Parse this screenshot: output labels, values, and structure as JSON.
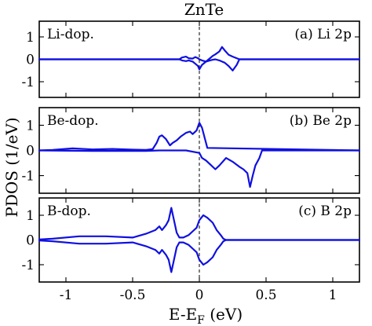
{
  "chart_data": [
    {
      "type": "line",
      "title": "ZnTe",
      "dopant_label": "Li-dop.",
      "panel_label": "(a) Li 2p",
      "xlim": [
        -1.2,
        1.2
      ],
      "ylim": [
        -1.7,
        1.7
      ],
      "yticks": [
        1,
        0,
        -1
      ],
      "ytick_labels": [
        "1",
        "0",
        "-1"
      ],
      "color": "#1010e0",
      "fermi_line_x": 0,
      "series": [
        {
          "x": [
            -1.2,
            -0.15,
            -0.13,
            -0.1,
            -0.08,
            -0.05,
            -0.03,
            -0.01,
            0.0,
            0.02,
            0.05,
            0.08,
            0.1,
            0.12,
            0.15,
            0.17,
            0.19,
            0.22,
            0.25,
            0.28,
            0.3,
            1.2
          ],
          "y": [
            0,
            0,
            0.08,
            0.12,
            0.05,
            0.03,
            0.1,
            0.05,
            0.0,
            -0.05,
            -0.1,
            0.05,
            0.15,
            0.22,
            0.35,
            0.55,
            0.4,
            0.2,
            0.12,
            0.05,
            0.0,
            0
          ]
        },
        {
          "x": [
            -1.2,
            -0.15,
            -0.13,
            -0.1,
            -0.08,
            -0.05,
            -0.03,
            -0.01,
            0.0,
            0.02,
            0.05,
            0.08,
            0.1,
            0.12,
            0.15,
            0.17,
            0.19,
            0.22,
            0.25,
            0.28,
            0.3,
            1.2
          ],
          "y": [
            0,
            0,
            -0.05,
            -0.08,
            -0.05,
            -0.1,
            -0.2,
            -0.3,
            -0.45,
            -0.25,
            -0.1,
            -0.05,
            -0.02,
            0.0,
            -0.05,
            -0.1,
            -0.15,
            -0.3,
            -0.5,
            -0.25,
            0.0,
            0
          ]
        }
      ]
    },
    {
      "type": "line",
      "dopant_label": "Be-dop.",
      "panel_label": "(b) Be 2p",
      "xlim": [
        -1.2,
        1.2
      ],
      "ylim": [
        -1.7,
        1.7
      ],
      "yticks": [
        1,
        0,
        -1
      ],
      "ytick_labels": [
        "1",
        "0",
        "-1"
      ],
      "color": "#1010e0",
      "fermi_line_x": 0,
      "series": [
        {
          "x": [
            -1.2,
            -1.1,
            -0.95,
            -0.8,
            -0.65,
            -0.5,
            -0.4,
            -0.35,
            -0.32,
            -0.3,
            -0.28,
            -0.25,
            -0.22,
            -0.2,
            -0.17,
            -0.14,
            -0.1,
            -0.07,
            -0.05,
            -0.02,
            0.0,
            0.02,
            0.04,
            0.06,
            1.2
          ],
          "y": [
            0,
            0.02,
            0.08,
            0.04,
            0.06,
            0.03,
            0.02,
            0.05,
            0.3,
            0.55,
            0.6,
            0.45,
            0.2,
            0.3,
            0.4,
            0.55,
            0.7,
            0.75,
            0.65,
            0.8,
            1.1,
            0.9,
            0.5,
            0.1,
            0
          ]
        },
        {
          "x": [
            -1.2,
            -0.8,
            -0.4,
            -0.3,
            -0.1,
            0.0,
            0.02,
            0.05,
            0.08,
            0.12,
            0.15,
            0.2,
            0.25,
            0.3,
            0.33,
            0.36,
            0.38,
            0.4,
            0.42,
            0.45,
            0.47,
            1.2
          ],
          "y": [
            0,
            -0.02,
            -0.02,
            0.0,
            0.0,
            -0.1,
            -0.3,
            -0.4,
            -0.55,
            -0.75,
            -0.6,
            -0.3,
            -0.45,
            -0.65,
            -0.75,
            -0.9,
            -1.45,
            -1.0,
            -0.6,
            -0.3,
            0.0,
            0
          ]
        }
      ]
    },
    {
      "type": "line",
      "dopant_label": "B-dop.",
      "panel_label": "(c) B 2p",
      "xlim": [
        -1.2,
        1.2
      ],
      "ylim": [
        -1.7,
        1.7
      ],
      "yticks": [
        1,
        0,
        -1
      ],
      "ytick_labels": [
        "1",
        "0",
        "-1"
      ],
      "xticks": [
        -1,
        -0.5,
        0,
        0.5,
        1
      ],
      "xtick_labels": [
        "-1",
        "-0.5",
        "0",
        "0.5",
        "1"
      ],
      "xlabel": "E-E",
      "xlabel_subscript": "F",
      "xlabel_suffix": " (eV)",
      "color": "#1010e0",
      "fermi_line_x": 0,
      "series": [
        {
          "x": [
            -1.2,
            -1.1,
            -0.9,
            -0.7,
            -0.5,
            -0.4,
            -0.33,
            -0.3,
            -0.28,
            -0.25,
            -0.23,
            -0.21,
            -0.19,
            -0.17,
            -0.15,
            -0.12,
            -0.08,
            -0.05,
            -0.02,
            0.0,
            0.03,
            0.06,
            0.1,
            0.13,
            0.16,
            0.18,
            0.2,
            1.2
          ],
          "y": [
            0.02,
            0.05,
            0.15,
            0.15,
            0.1,
            0.25,
            0.4,
            0.55,
            0.4,
            0.6,
            0.8,
            1.3,
            0.8,
            0.3,
            0.1,
            0.1,
            0.2,
            0.35,
            0.5,
            0.8,
            1.0,
            0.9,
            0.7,
            0.4,
            0.2,
            0.05,
            0.0,
            0
          ]
        },
        {
          "x": [
            -1.2,
            -1.1,
            -0.9,
            -0.7,
            -0.5,
            -0.4,
            -0.33,
            -0.3,
            -0.28,
            -0.25,
            -0.23,
            -0.21,
            -0.19,
            -0.17,
            -0.15,
            -0.12,
            -0.08,
            -0.05,
            -0.02,
            0.0,
            0.03,
            0.06,
            0.1,
            0.13,
            0.16,
            0.18,
            0.2,
            1.2
          ],
          "y": [
            -0.02,
            -0.05,
            -0.15,
            -0.15,
            -0.1,
            -0.25,
            -0.4,
            -0.55,
            -0.4,
            -0.6,
            -0.8,
            -1.3,
            -0.8,
            -0.3,
            -0.1,
            -0.1,
            -0.2,
            -0.35,
            -0.5,
            -0.8,
            -1.0,
            -0.9,
            -0.7,
            -0.4,
            -0.2,
            -0.05,
            0.0,
            0
          ]
        }
      ]
    }
  ],
  "ylabel": "PDOS (1/eV)"
}
